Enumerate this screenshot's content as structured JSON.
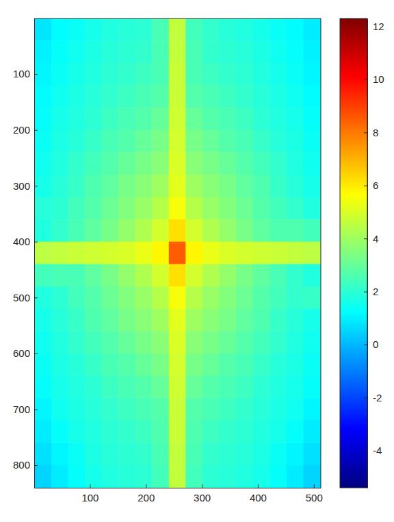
{
  "chart_data": {
    "type": "heatmap",
    "color": "jet",
    "x": [
      16,
      46,
      76,
      106,
      136,
      166,
      196,
      226,
      256,
      286,
      316,
      346,
      376,
      406,
      436,
      466,
      497
    ],
    "y": [
      20,
      60,
      100,
      140,
      180,
      220,
      260,
      300,
      340,
      380,
      420,
      460,
      500,
      540,
      580,
      620,
      660,
      700,
      740,
      780,
      820
    ],
    "values": [
      [
        0.8,
        1.2,
        1.4,
        1.6,
        1.8,
        1.9,
        2.0,
        2.5,
        4.6,
        2.4,
        2.1,
        1.9,
        1.8,
        1.6,
        1.4,
        1.2,
        0.9
      ],
      [
        1.0,
        1.3,
        1.5,
        1.7,
        1.9,
        2.0,
        2.1,
        2.5,
        4.6,
        2.5,
        2.1,
        2.0,
        1.9,
        1.7,
        1.5,
        1.3,
        1.0
      ],
      [
        1.1,
        1.4,
        1.6,
        1.8,
        2.0,
        2.1,
        2.3,
        2.5,
        4.7,
        2.5,
        2.3,
        2.1,
        2.0,
        1.8,
        1.6,
        1.4,
        1.1
      ],
      [
        1.2,
        1.5,
        1.7,
        1.9,
        2.1,
        2.3,
        2.5,
        2.7,
        4.7,
        2.7,
        2.5,
        2.3,
        2.1,
        1.9,
        1.7,
        1.5,
        1.2
      ],
      [
        1.3,
        1.6,
        1.8,
        2.0,
        2.3,
        2.5,
        2.7,
        3.0,
        4.8,
        3.0,
        2.7,
        2.5,
        2.3,
        2.0,
        1.8,
        1.6,
        1.3
      ],
      [
        1.4,
        1.7,
        1.9,
        2.2,
        2.5,
        2.7,
        3.0,
        3.3,
        4.9,
        3.3,
        3.0,
        2.7,
        2.5,
        2.2,
        1.9,
        1.7,
        1.4
      ],
      [
        1.5,
        1.8,
        2.1,
        2.4,
        2.7,
        3.0,
        3.3,
        3.6,
        5.0,
        3.6,
        3.3,
        3.0,
        2.7,
        2.4,
        2.1,
        1.8,
        1.5
      ],
      [
        1.6,
        1.9,
        2.2,
        2.6,
        2.9,
        3.3,
        3.6,
        4.0,
        5.2,
        4.0,
        3.6,
        3.3,
        2.9,
        2.6,
        2.2,
        1.9,
        1.6
      ],
      [
        1.9,
        2.0,
        2.4,
        2.7,
        3.1,
        3.5,
        3.9,
        4.4,
        5.5,
        4.4,
        3.9,
        3.5,
        3.1,
        2.7,
        2.4,
        2.1,
        1.8
      ],
      [
        1.8,
        2.1,
        2.5,
        2.9,
        3.3,
        3.8,
        4.3,
        4.9,
        6.2,
        4.9,
        4.3,
        3.8,
        3.3,
        2.9,
        2.6,
        2.6,
        2.4
      ],
      [
        4.5,
        4.6,
        4.7,
        4.8,
        4.9,
        5.0,
        5.3,
        5.8,
        8.5,
        5.8,
        5.3,
        5.0,
        4.9,
        4.8,
        4.7,
        4.6,
        4.5
      ],
      [
        2.4,
        2.5,
        2.5,
        2.9,
        3.3,
        3.8,
        4.3,
        4.9,
        6.2,
        4.9,
        4.3,
        3.8,
        3.3,
        2.9,
        2.5,
        2.1,
        1.8
      ],
      [
        1.8,
        2.0,
        2.4,
        2.7,
        3.1,
        3.5,
        3.9,
        4.4,
        5.5,
        4.4,
        3.9,
        3.5,
        3.1,
        2.7,
        2.4,
        2.1,
        2.2
      ],
      [
        1.6,
        1.9,
        2.2,
        2.6,
        2.9,
        3.3,
        3.6,
        4.0,
        5.2,
        4.0,
        3.6,
        3.3,
        2.9,
        2.6,
        2.2,
        1.9,
        1.6
      ],
      [
        1.5,
        1.8,
        2.1,
        2.4,
        2.7,
        3.0,
        3.3,
        3.6,
        5.0,
        3.6,
        3.3,
        3.0,
        2.7,
        2.4,
        2.1,
        1.8,
        1.5
      ],
      [
        1.4,
        1.7,
        1.9,
        2.2,
        2.5,
        2.7,
        3.0,
        3.3,
        4.9,
        3.3,
        3.0,
        2.7,
        2.5,
        2.2,
        1.9,
        1.7,
        1.4
      ],
      [
        1.3,
        1.6,
        1.8,
        2.0,
        2.3,
        2.5,
        2.7,
        3.0,
        4.8,
        3.0,
        2.7,
        2.5,
        2.3,
        2.0,
        1.8,
        1.6,
        1.3
      ],
      [
        1.1,
        1.5,
        1.7,
        1.9,
        2.1,
        2.3,
        2.5,
        2.7,
        4.7,
        2.7,
        2.5,
        2.3,
        2.1,
        1.9,
        1.7,
        1.5,
        1.1
      ],
      [
        0.9,
        1.3,
        1.6,
        1.8,
        2.0,
        2.1,
        2.3,
        2.6,
        4.7,
        2.6,
        2.3,
        2.1,
        2.0,
        1.8,
        1.6,
        1.3,
        0.9
      ],
      [
        0.7,
        1.1,
        1.4,
        1.7,
        1.9,
        2.0,
        2.1,
        2.5,
        4.6,
        2.5,
        2.1,
        2.0,
        1.9,
        1.7,
        1.4,
        1.1,
        0.7
      ],
      [
        0.5,
        0.9,
        1.3,
        1.6,
        1.8,
        1.9,
        2.0,
        2.4,
        4.6,
        2.4,
        2.0,
        1.9,
        1.8,
        1.6,
        1.3,
        0.9,
        0.5
      ]
    ],
    "xlim": [
      0.5,
      512.5
    ],
    "ylim": [
      0.5,
      840.5
    ],
    "xticks": [
      100,
      200,
      300,
      400,
      500
    ],
    "yticks": [
      100,
      200,
      300,
      400,
      500,
      600,
      700,
      800
    ],
    "colorbar_lim": [
      -5.4,
      12.3
    ],
    "colorbar_ticks": [
      -4,
      -2,
      0,
      2,
      4,
      6,
      8,
      10,
      12
    ]
  }
}
